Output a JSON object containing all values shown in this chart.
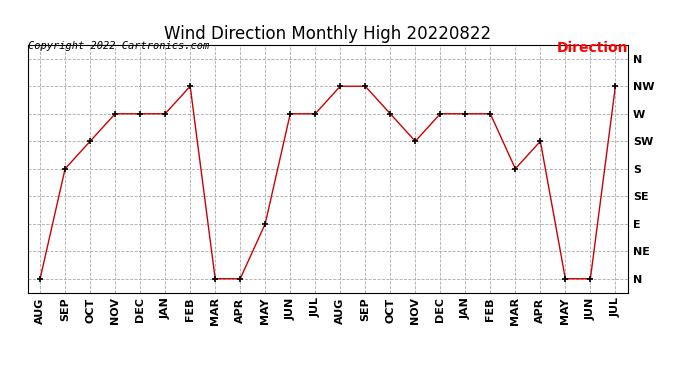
{
  "title": "Wind Direction Monthly High 20220822",
  "copyright": "Copyright 2022 Cartronics.com",
  "legend_label": "Direction",
  "x_labels": [
    "AUG",
    "SEP",
    "OCT",
    "NOV",
    "DEC",
    "JAN",
    "FEB",
    "MAR",
    "APR",
    "MAY",
    "JUN",
    "JUL",
    "AUG",
    "SEP",
    "OCT",
    "NOV",
    "DEC",
    "JAN",
    "FEB",
    "MAR",
    "APR",
    "MAY",
    "JUN",
    "JUL"
  ],
  "y_labels": [
    "N",
    "NE",
    "E",
    "SE",
    "S",
    "SW",
    "W",
    "NW",
    "N"
  ],
  "y_values": [
    0,
    1,
    2,
    3,
    4,
    5,
    6,
    7,
    8
  ],
  "direction_values": [
    0,
    4,
    5,
    6,
    6,
    6,
    7,
    0,
    0,
    2,
    6,
    6,
    7,
    7,
    6,
    5,
    6,
    6,
    6,
    4,
    5,
    0,
    0,
    7
  ],
  "line_color": "#cc0000",
  "marker": "+",
  "marker_color": "#000000",
  "background_color": "#ffffff",
  "grid_color": "#aaaaaa",
  "title_fontsize": 12,
  "axis_fontsize": 8,
  "copyright_fontsize": 7.5,
  "legend_fontsize": 10
}
